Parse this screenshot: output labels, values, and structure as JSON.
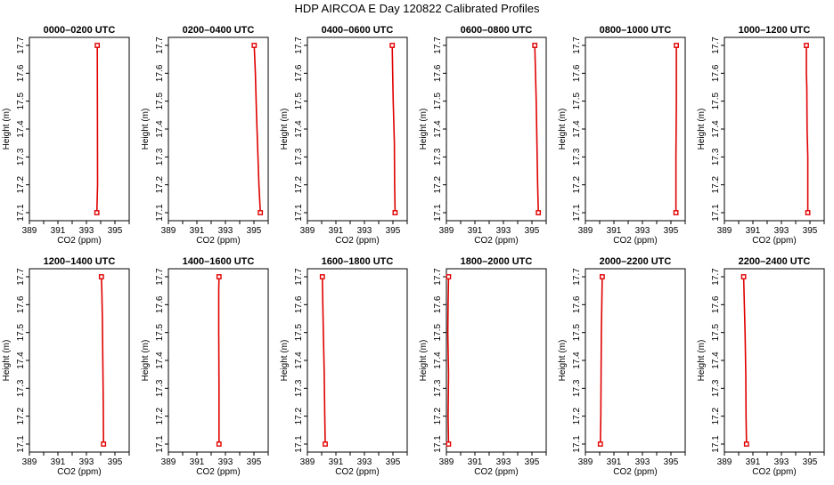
{
  "title": "HDP AIRCOA E  Day 120822  Calibrated Profiles",
  "colors": {
    "series": "#e00000",
    "axis": "#000000"
  },
  "chart_data": [
    {
      "type": "line",
      "title": "0000–0200 UTC",
      "xlabel": "CO2 (ppm)",
      "ylabel": "Height (m)",
      "xlim": [
        389,
        396
      ],
      "ylim": [
        17.1,
        17.7
      ],
      "xticks": [
        "389",
        "391",
        "393",
        "395"
      ],
      "yticks": [
        "17.1",
        "17.2",
        "17.3",
        "17.4",
        "17.5",
        "17.6",
        "17.7"
      ],
      "grid": false,
      "series": [
        {
          "x": [
            393.73,
            393.78,
            393.76
          ],
          "y": [
            17.1,
            17.2,
            17.7
          ]
        }
      ]
    },
    {
      "type": "line",
      "title": "0200–0400 UTC",
      "xlabel": "CO2 (ppm)",
      "ylabel": "Height (m)",
      "xlim": [
        389,
        396
      ],
      "ylim": [
        17.1,
        17.7
      ],
      "xticks": [
        "389",
        "391",
        "393",
        "395"
      ],
      "yticks": [
        "17.1",
        "17.2",
        "17.3",
        "17.4",
        "17.5",
        "17.6",
        "17.7"
      ],
      "grid": false,
      "series": [
        {
          "x": [
            395.45,
            395.35,
            395.25,
            395.18,
            395.1,
            395.02
          ],
          "y": [
            17.1,
            17.2,
            17.35,
            17.45,
            17.6,
            17.7
          ]
        }
      ]
    },
    {
      "type": "line",
      "title": "0400–0600 UTC",
      "xlabel": "CO2 (ppm)",
      "ylabel": "Height (m)",
      "xlim": [
        389,
        396
      ],
      "ylim": [
        17.1,
        17.7
      ],
      "xticks": [
        "389",
        "391",
        "393",
        "395"
      ],
      "yticks": [
        "17.1",
        "17.2",
        "17.3",
        "17.4",
        "17.5",
        "17.6",
        "17.7"
      ],
      "grid": false,
      "series": [
        {
          "x": [
            395.15,
            395.12,
            395.1,
            395.02,
            394.98,
            394.95
          ],
          "y": [
            17.1,
            17.2,
            17.35,
            17.5,
            17.6,
            17.7
          ]
        }
      ]
    },
    {
      "type": "line",
      "title": "0600–0800 UTC",
      "xlabel": "CO2 (ppm)",
      "ylabel": "Height (m)",
      "xlim": [
        389,
        396
      ],
      "ylim": [
        17.1,
        17.7
      ],
      "xticks": [
        "389",
        "391",
        "393",
        "395"
      ],
      "yticks": [
        "17.1",
        "17.2",
        "17.3",
        "17.4",
        "17.5",
        "17.6",
        "17.7"
      ],
      "grid": false,
      "series": [
        {
          "x": [
            395.45,
            395.4,
            395.35,
            395.3,
            395.25,
            395.2
          ],
          "y": [
            17.1,
            17.2,
            17.35,
            17.5,
            17.6,
            17.7
          ]
        }
      ]
    },
    {
      "type": "line",
      "title": "0800–1000 UTC",
      "xlabel": "CO2 (ppm)",
      "ylabel": "Height (m)",
      "xlim": [
        389,
        396
      ],
      "ylim": [
        17.1,
        17.7
      ],
      "xticks": [
        "389",
        "391",
        "393",
        "395"
      ],
      "yticks": [
        "17.1",
        "17.2",
        "17.3",
        "17.4",
        "17.5",
        "17.6",
        "17.7"
      ],
      "grid": false,
      "series": [
        {
          "x": [
            395.35,
            395.35,
            395.38,
            395.38
          ],
          "y": [
            17.1,
            17.3,
            17.5,
            17.7
          ]
        }
      ]
    },
    {
      "type": "line",
      "title": "1000–1200 UTC",
      "xlabel": "CO2 (ppm)",
      "ylabel": "Height (m)",
      "xlim": [
        389,
        396
      ],
      "ylim": [
        17.1,
        17.7
      ],
      "xticks": [
        "389",
        "391",
        "393",
        "395"
      ],
      "yticks": [
        "17.1",
        "17.2",
        "17.3",
        "17.4",
        "17.5",
        "17.6",
        "17.7"
      ],
      "grid": false,
      "series": [
        {
          "x": [
            394.85,
            394.85,
            394.8,
            394.78,
            394.75,
            394.75
          ],
          "y": [
            17.1,
            17.3,
            17.4,
            17.55,
            17.6,
            17.7
          ]
        }
      ]
    },
    {
      "type": "line",
      "title": "1200–1400 UTC",
      "xlabel": "CO2 (ppm)",
      "ylabel": "Height (m)",
      "xlim": [
        389,
        396
      ],
      "ylim": [
        17.1,
        17.7
      ],
      "xticks": [
        "389",
        "391",
        "393",
        "395"
      ],
      "yticks": [
        "17.1",
        "17.2",
        "17.3",
        "17.4",
        "17.5",
        "17.6",
        "17.7"
      ],
      "grid": false,
      "series": [
        {
          "x": [
            394.2,
            394.18,
            394.15,
            394.12,
            394.08,
            394.05
          ],
          "y": [
            17.1,
            17.25,
            17.4,
            17.55,
            17.65,
            17.7
          ]
        }
      ]
    },
    {
      "type": "line",
      "title": "1400–1600 UTC",
      "xlabel": "CO2 (ppm)",
      "ylabel": "Height (m)",
      "xlim": [
        389,
        396
      ],
      "ylim": [
        17.1,
        17.7
      ],
      "xticks": [
        "389",
        "391",
        "393",
        "395"
      ],
      "yticks": [
        "17.1",
        "17.2",
        "17.3",
        "17.4",
        "17.5",
        "17.6",
        "17.7"
      ],
      "grid": false,
      "series": [
        {
          "x": [
            392.55,
            392.55,
            392.53,
            392.53,
            392.55
          ],
          "y": [
            17.1,
            17.3,
            17.5,
            17.65,
            17.7
          ]
        }
      ]
    },
    {
      "type": "line",
      "title": "1600–1800 UTC",
      "xlabel": "CO2 (ppm)",
      "ylabel": "Height (m)",
      "xlim": [
        389,
        396
      ],
      "ylim": [
        17.1,
        17.7
      ],
      "xticks": [
        "389",
        "391",
        "393",
        "395"
      ],
      "yticks": [
        "17.1",
        "17.2",
        "17.3",
        "17.4",
        "17.5",
        "17.6",
        "17.7"
      ],
      "grid": false,
      "series": [
        {
          "x": [
            390.25,
            390.22,
            390.18,
            390.12,
            390.08,
            390.05
          ],
          "y": [
            17.1,
            17.2,
            17.35,
            17.5,
            17.6,
            17.7
          ]
        }
      ]
    },
    {
      "type": "line",
      "title": "1800–2000 UTC",
      "xlabel": "CO2 (ppm)",
      "ylabel": "Height (m)",
      "xlim": [
        389,
        396
      ],
      "ylim": [
        17.1,
        17.7
      ],
      "xticks": [
        "389",
        "391",
        "393",
        "395"
      ],
      "yticks": [
        "17.1",
        "17.2",
        "17.3",
        "17.4",
        "17.5",
        "17.6",
        "17.7"
      ],
      "grid": false,
      "series": [
        {
          "x": [
            389.15,
            389.12,
            389.15,
            389.1,
            389.12,
            389.15
          ],
          "y": [
            17.1,
            17.2,
            17.35,
            17.5,
            17.6,
            17.7
          ]
        }
      ]
    },
    {
      "type": "line",
      "title": "2000–2200 UTC",
      "xlabel": "CO2 (ppm)",
      "ylabel": "Height (m)",
      "xlim": [
        389,
        396
      ],
      "ylim": [
        17.1,
        17.7
      ],
      "xticks": [
        "389",
        "391",
        "393",
        "395"
      ],
      "yticks": [
        "17.1",
        "17.2",
        "17.3",
        "17.4",
        "17.5",
        "17.6",
        "17.7"
      ],
      "grid": false,
      "series": [
        {
          "x": [
            390.05,
            390.08,
            390.1,
            390.12,
            390.15,
            390.18
          ],
          "y": [
            17.1,
            17.2,
            17.35,
            17.5,
            17.6,
            17.7
          ]
        }
      ]
    },
    {
      "type": "line",
      "title": "2200–2400 UTC",
      "xlabel": "CO2 (ppm)",
      "ylabel": "Height (m)",
      "xlim": [
        389,
        396
      ],
      "ylim": [
        17.1,
        17.7
      ],
      "xticks": [
        "389",
        "391",
        "393",
        "395"
      ],
      "yticks": [
        "17.1",
        "17.2",
        "17.3",
        "17.4",
        "17.5",
        "17.6",
        "17.7"
      ],
      "grid": false,
      "series": [
        {
          "x": [
            390.55,
            390.52,
            390.5,
            390.45,
            390.4,
            390.35
          ],
          "y": [
            17.1,
            17.2,
            17.35,
            17.5,
            17.6,
            17.7
          ]
        }
      ]
    }
  ]
}
